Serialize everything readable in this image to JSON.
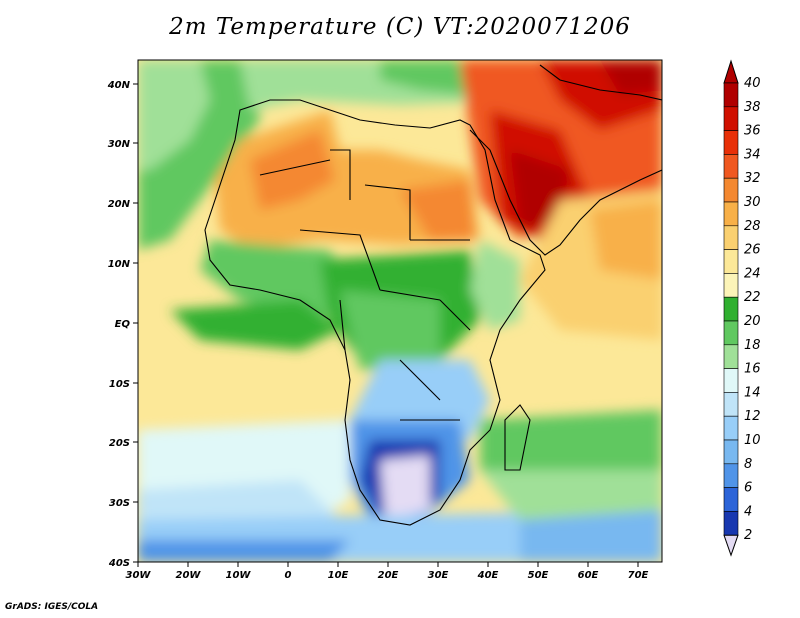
{
  "title": "2m Temperature (C) VT:2020071206",
  "footer": "GrADS: IGES/COLA",
  "map": {
    "lat_ticks": [
      "40N",
      "30N",
      "20N",
      "10N",
      "EQ",
      "10S",
      "20S",
      "30S",
      "40S"
    ],
    "lon_ticks": [
      "30W",
      "20W",
      "10W",
      "0",
      "10E",
      "20E",
      "30E",
      "40E",
      "50E",
      "60E",
      "70E"
    ],
    "extent": {
      "lon_min": -30,
      "lon_max": 75,
      "lat_min": -40,
      "lat_max": 45
    }
  },
  "colorbar": {
    "labels": [
      "40",
      "38",
      "36",
      "34",
      "32",
      "30",
      "28",
      "26",
      "24",
      "22",
      "20",
      "18",
      "16",
      "14",
      "12",
      "10",
      "8",
      "6",
      "4",
      "2"
    ],
    "colors": [
      "#b00000",
      "#d01000",
      "#e83008",
      "#f05820",
      "#f48830",
      "#f8b048",
      "#fad070",
      "#fce898",
      "#fcf4b8",
      "#30b030",
      "#60c860",
      "#a0e098",
      "#e0f8f8",
      "#c0e4f8",
      "#98cef8",
      "#78b8f0",
      "#5094e8",
      "#2c64d8",
      "#1838b0",
      "#102078"
    ],
    "under_color": "#e4dcf4"
  }
}
